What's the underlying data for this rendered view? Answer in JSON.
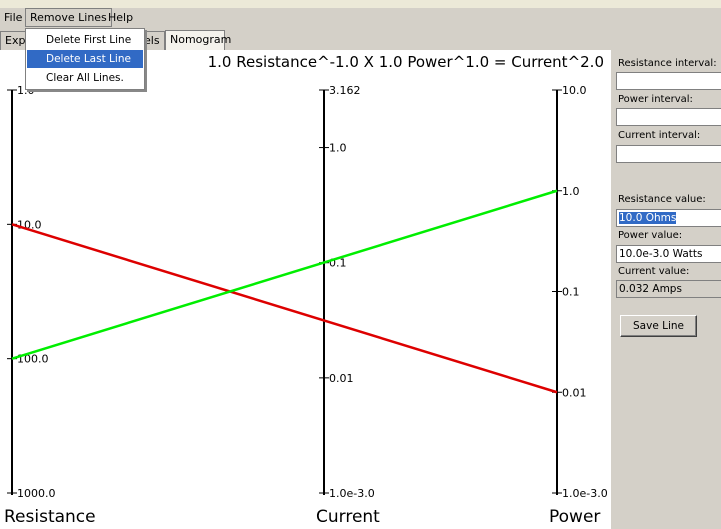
{
  "menubar": {
    "items": [
      {
        "label": "File"
      },
      {
        "label": "Remove Lines"
      },
      {
        "label": "Help"
      }
    ]
  },
  "tabs": [
    {
      "label": "Expr"
    },
    {
      "label": "els"
    },
    {
      "label": "Nomogram"
    }
  ],
  "dropdown": {
    "items": [
      {
        "label": "Delete First Line"
      },
      {
        "label": "Delete Last Line"
      },
      {
        "label": "Clear All Lines."
      }
    ]
  },
  "nomogram": {
    "equation": "1.0 Resistance^-1.0 X 1.0 Power^1.0 = Current^2.0",
    "axes": [
      {
        "name": "Resistance",
        "ticks": [
          "1.0",
          "10.0",
          "100.0",
          "1000.0"
        ]
      },
      {
        "name": "Current",
        "ticks": [
          "3.162",
          "1.0",
          "0.1",
          "0.01",
          "1.0e-3.0"
        ]
      },
      {
        "name": "Power",
        "ticks": [
          "10.0",
          "1.0",
          "0.1",
          "0.01",
          "1.0e-3.0"
        ]
      }
    ],
    "lines": [
      {
        "color": "#dd0000",
        "resistance": 10.0,
        "power": 0.01
      },
      {
        "color": "#00ee00",
        "resistance": 100.0,
        "power": 1.0
      }
    ]
  },
  "side_panel": {
    "resistance_interval_label": "Resistance interval:",
    "power_interval_label": "Power interval:",
    "current_interval_label": "Current interval:",
    "resistance_value_label": "Resistance value:",
    "resistance_value": "10.0 Ohms",
    "power_value_label": "Power value:",
    "power_value": "10.0e-3.0 Watts",
    "current_value_label": "Current value:",
    "current_value": "0.032 Amps",
    "save_button": "Save Line"
  }
}
